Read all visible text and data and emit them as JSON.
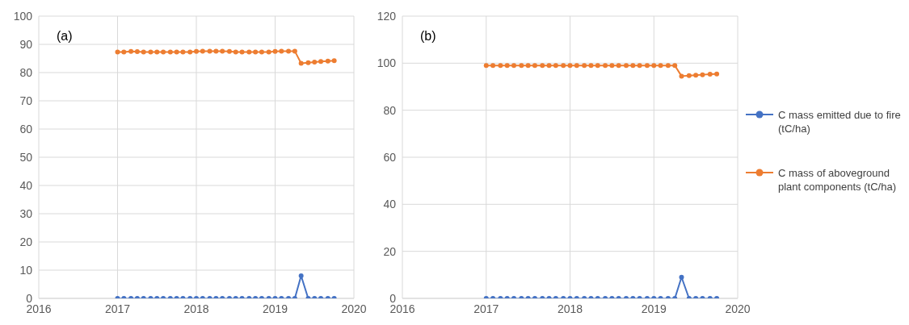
{
  "chart_data": [
    {
      "type": "line",
      "annotations": [
        "(a)"
      ],
      "x": [
        2017,
        2017.08,
        2017.17,
        2017.25,
        2017.33,
        2017.42,
        2017.5,
        2017.58,
        2017.67,
        2017.75,
        2017.83,
        2017.92,
        2018,
        2018.08,
        2018.17,
        2018.25,
        2018.33,
        2018.42,
        2018.5,
        2018.58,
        2018.67,
        2018.75,
        2018.83,
        2018.92,
        2019,
        2019.08,
        2019.17,
        2019.25,
        2019.33,
        2019.42,
        2019.5,
        2019.58,
        2019.67,
        2019.75
      ],
      "series": [
        {
          "color": "#4472c4",
          "values": [
            0,
            0,
            0,
            0,
            0,
            0,
            0,
            0,
            0,
            0,
            0,
            0,
            0,
            0,
            0,
            0,
            0,
            0,
            0,
            0,
            0,
            0,
            0,
            0,
            0,
            0,
            0,
            0,
            8,
            0,
            0,
            0,
            0,
            0
          ]
        },
        {
          "color": "#ed7d31",
          "values": [
            87.3,
            87.3,
            87.5,
            87.4,
            87.3,
            87.3,
            87.3,
            87.3,
            87.3,
            87.3,
            87.3,
            87.3,
            87.5,
            87.6,
            87.6,
            87.6,
            87.6,
            87.5,
            87.3,
            87.3,
            87.3,
            87.3,
            87.3,
            87.3,
            87.5,
            87.6,
            87.6,
            87.6,
            83.3,
            83.5,
            83.7,
            83.9,
            84.1,
            84.2
          ]
        }
      ],
      "xlim": [
        2016,
        2020
      ],
      "xticks": [
        2016,
        2017,
        2018,
        2019,
        2020
      ],
      "ylim": [
        0,
        100
      ],
      "yticks": [
        0,
        10,
        20,
        30,
        40,
        50,
        60,
        70,
        80,
        90,
        100
      ],
      "grid": true,
      "marker": "circle",
      "line_style": "solid"
    },
    {
      "type": "line",
      "annotations": [
        "(b)"
      ],
      "x": [
        2017,
        2017.08,
        2017.17,
        2017.25,
        2017.33,
        2017.42,
        2017.5,
        2017.58,
        2017.67,
        2017.75,
        2017.83,
        2017.92,
        2018,
        2018.08,
        2018.17,
        2018.25,
        2018.33,
        2018.42,
        2018.5,
        2018.58,
        2018.67,
        2018.75,
        2018.83,
        2018.92,
        2019,
        2019.08,
        2019.17,
        2019.25,
        2019.33,
        2019.42,
        2019.5,
        2019.58,
        2019.67,
        2019.75
      ],
      "series": [
        {
          "name": "C mass emitted due to fire  (tC/ha)",
          "color": "#4472c4",
          "values": [
            0,
            0,
            0,
            0,
            0,
            0,
            0,
            0,
            0,
            0,
            0,
            0,
            0,
            0,
            0,
            0,
            0,
            0,
            0,
            0,
            0,
            0,
            0,
            0,
            0,
            0,
            0,
            0,
            9,
            0,
            0,
            0,
            0,
            0
          ]
        },
        {
          "name": "C mass of aboveground plant components (tC/ha)",
          "color": "#ed7d31",
          "values": [
            99,
            99,
            99,
            99,
            99,
            99,
            99,
            99,
            99,
            99,
            99,
            99,
            99,
            99,
            99,
            99,
            99,
            99,
            99,
            99,
            99,
            99,
            99,
            99,
            99,
            99,
            99,
            99,
            94.5,
            94.7,
            94.9,
            95.1,
            95.3,
            95.4
          ]
        }
      ],
      "xlim": [
        2016,
        2020
      ],
      "xticks": [
        2016,
        2017,
        2018,
        2019,
        2020
      ],
      "ylim": [
        0,
        120
      ],
      "yticks": [
        0,
        20,
        40,
        60,
        80,
        100,
        120
      ],
      "grid": true,
      "legend": "right",
      "marker": "circle",
      "line_style": "solid"
    }
  ]
}
